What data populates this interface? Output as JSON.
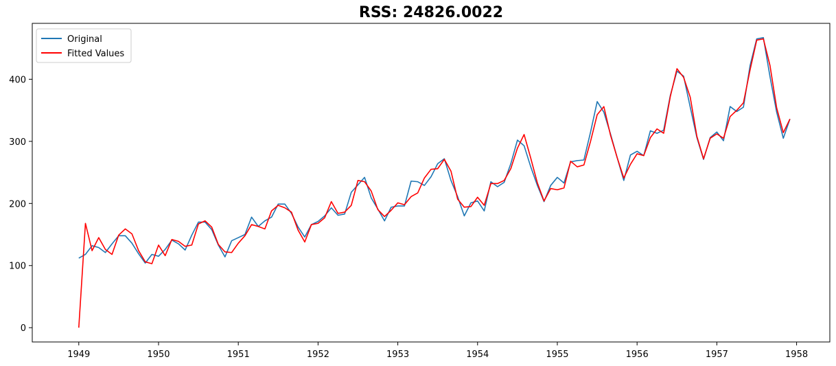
{
  "chart_data": {
    "type": "line",
    "title": "RSS: 24826.0022",
    "xlabel": "",
    "ylabel": "",
    "x_start": "1949-01",
    "x_ticks": [
      "1949",
      "1950",
      "1951",
      "1952",
      "1953",
      "1954",
      "1955",
      "1956",
      "1957",
      "1958"
    ],
    "y_ticks": [
      0,
      100,
      200,
      300,
      400
    ],
    "xlim": [
      "1948-06",
      "1958-06"
    ],
    "ylim": [
      -23,
      490
    ],
    "grid": false,
    "legend_position": "top-left",
    "series": [
      {
        "name": "Original",
        "color": "#1f77b4",
        "values": [
          112,
          118,
          132,
          129,
          121,
          135,
          148,
          148,
          136,
          119,
          104,
          118,
          115,
          126,
          141,
          135,
          125,
          149,
          170,
          170,
          158,
          133,
          114,
          140,
          145,
          150,
          178,
          163,
          172,
          178,
          199,
          199,
          184,
          162,
          146,
          166,
          171,
          180,
          193,
          181,
          183,
          218,
          230,
          242,
          209,
          191,
          172,
          194,
          196,
          196,
          236,
          235,
          229,
          243,
          264,
          272,
          237,
          211,
          180,
          201,
          204,
          188,
          235,
          227,
          234,
          264,
          302,
          293,
          259,
          229,
          203,
          229,
          242,
          233,
          267,
          269,
          270,
          315,
          364,
          347,
          312,
          274,
          237,
          278,
          284,
          277,
          317,
          313,
          318,
          374,
          413,
          405,
          355,
          306,
          271,
          306,
          315,
          301,
          356,
          348,
          355,
          422,
          465,
          467,
          404,
          347,
          305,
          336
        ]
      },
      {
        "name": "Fitted Values",
        "color": "#ff0000",
        "values": [
          0,
          168,
          124,
          145,
          126,
          118,
          149,
          159,
          151,
          124,
          106,
          103,
          133,
          116,
          142,
          139,
          131,
          133,
          167,
          172,
          162,
          134,
          122,
          121,
          136,
          148,
          166,
          163,
          159,
          188,
          197,
          193,
          186,
          157,
          138,
          166,
          168,
          177,
          203,
          184,
          186,
          197,
          237,
          235,
          220,
          190,
          179,
          189,
          201,
          198,
          211,
          217,
          241,
          255,
          256,
          271,
          252,
          207,
          194,
          195,
          210,
          197,
          232,
          232,
          237,
          256,
          289,
          311,
          273,
          233,
          204,
          224,
          222,
          225,
          268,
          259,
          262,
          300,
          343,
          356,
          310,
          274,
          241,
          263,
          280,
          277,
          306,
          320,
          313,
          372,
          417,
          403,
          371,
          308,
          272,
          305,
          312,
          305,
          340,
          350,
          362,
          415,
          463,
          465,
          422,
          354,
          314,
          336
        ]
      }
    ]
  }
}
